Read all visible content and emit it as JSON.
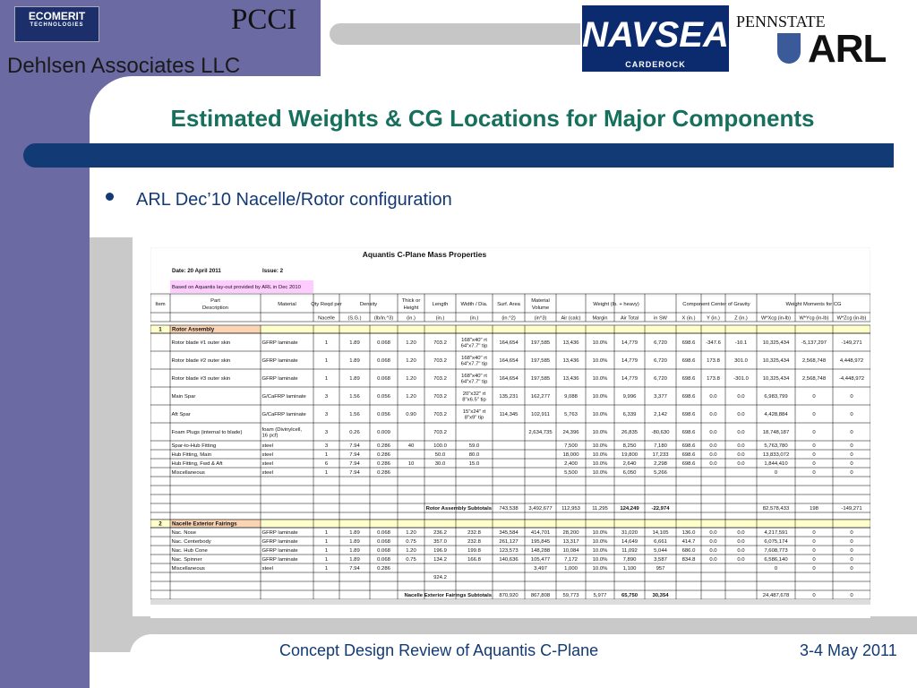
{
  "logos": {
    "ecomerit": "ECOMERIT",
    "ecomerit_sub": "TECHNOLOGIES",
    "pcci": "PCCI",
    "navsea": "NAVSEA",
    "navsea_sub": "CARDEROCK",
    "pennstate": "PENNSTATE",
    "arl": "ARL"
  },
  "company": "Dehlsen Associates LLC",
  "title": "Estimated Weights & CG Locations for Major Components",
  "bullet": "ARL Dec’10 Nacelle/Rotor configuration",
  "footer": {
    "left": "Concept Design Review of Aquantis C-Plane",
    "right": "3-4 May 2011"
  },
  "colors": {
    "purple": "#6b6aa3",
    "navy": "#123a74",
    "title_green": "#16705d",
    "section_yellow": "#ffffcc",
    "note_pink": "#ffccff",
    "header_section_bg": "#fbd4b4"
  },
  "table": {
    "title": "Aquantis C-Plane Mass Properties",
    "date": "Date:  20 April 2011",
    "issue": "Issue:  2",
    "note": "Based on Aquantis lay-out provided by ARL in Dec 2010",
    "headers1": [
      "Item",
      "Part Description",
      "Material",
      "Qty Reqd per",
      "Density",
      "Thick or Height",
      "Length",
      "Width / Dia.",
      "Surf. Area",
      "Material Volume",
      "Weight (lb. + heavy)",
      "Component Center of Gravity",
      "Weight Moments for CG"
    ],
    "headers2": [
      "Nacelle",
      "(S.G.)",
      "(lb/in.^3)",
      "(in.)",
      "(in.)",
      "(in.)",
      "(in.^2)",
      "(in^3)",
      "Air (calc)",
      "Margin",
      "Air Total",
      "in SW",
      "X (in.)",
      "Y (in.)",
      "Z (in.)",
      "W*Xcg (in-lb)",
      "W*Ycg (in-lb)",
      "W*Zcg (in-lb)"
    ],
    "sections": [
      {
        "num": "1",
        "name": "Rotor Assembly",
        "rows": [
          [
            "Rotor blade #1 outer skin",
            "GFRP laminate",
            "1",
            "1.89",
            "0.068",
            "1.20",
            "703.2",
            "168\"x40\" rt|64\"x7.7\" tip",
            "164,654",
            "197,585",
            "13,436",
            "10.0%",
            "14,779",
            "6,720",
            "698.6",
            "-347.6",
            "-10.1",
            "10,325,434",
            "-5,137,297",
            "-149,271"
          ],
          [
            "Rotor blade #2 outer skin",
            "GFRP laminate",
            "1",
            "1.89",
            "0.068",
            "1.20",
            "703.2",
            "168\"x40\" rt|64\"x7.7\" tip",
            "164,654",
            "197,585",
            "13,436",
            "10.0%",
            "14,779",
            "6,720",
            "698.6",
            "173.8",
            "301.0",
            "10,325,434",
            "2,568,748",
            "4,448,972"
          ],
          [
            "Rotor blade #3 outer skin",
            "GFRP laminate",
            "1",
            "1.89",
            "0.068",
            "1.20",
            "703.2",
            "168\"x40\" rt|64\"x7.7\" tip",
            "164,654",
            "197,585",
            "13,436",
            "10.0%",
            "14,779",
            "6,720",
            "698.6",
            "173.8",
            "-301.0",
            "10,325,434",
            "2,568,748",
            "-4,448,972"
          ],
          [
            "Main Spar",
            "G/CaFRP laminate",
            "3",
            "1.56",
            "0.056",
            "1.20",
            "703.2",
            "20\"x32\" rt|8\"x6.5\" tip",
            "135,231",
            "162,277",
            "9,088",
            "10.0%",
            "9,996",
            "3,377",
            "698.6",
            "0.0",
            "0.0",
            "6,983,799",
            "0",
            "0"
          ],
          [
            "Aft Spar",
            "G/CaFRP laminate",
            "3",
            "1.56",
            "0.056",
            "0.90",
            "703.2",
            "15\"x24\" rt|8\"x9\" tip",
            "114,345",
            "102,911",
            "5,763",
            "10.0%",
            "6,339",
            "2,142",
            "698.6",
            "0.0",
            "0.0",
            "4,428,884",
            "0",
            "0"
          ],
          [
            "Foam Plugs (internal to blade)",
            "foam (Divinylcell,|16 pcf)",
            "3",
            "0.26",
            "0.009",
            "",
            "703.2",
            "",
            "",
            "2,634,735",
            "24,396",
            "10.0%",
            "26,835",
            "-80,630",
            "698.6",
            "0.0",
            "0.0",
            "18,748,187",
            "0",
            "0"
          ],
          [
            "Spar-to-Hub Fitting",
            "steel",
            "3",
            "7.94",
            "0.286",
            "40",
            "100.0",
            "59.0",
            "",
            "",
            "7,500",
            "10.0%",
            "8,250",
            "7,180",
            "698.6",
            "0.0",
            "0.0",
            "5,763,780",
            "0",
            "0"
          ],
          [
            "Hub Fitting, Main",
            "steel",
            "1",
            "7.94",
            "0.286",
            "",
            "50.0",
            "80.0",
            "",
            "",
            "18,000",
            "10.0%",
            "19,800",
            "17,233",
            "698.6",
            "0.0",
            "0.0",
            "13,833,072",
            "0",
            "0"
          ],
          [
            "Hub Fitting, Fwd & Aft",
            "steel",
            "6",
            "7.94",
            "0.286",
            "10",
            "30.0",
            "15.0",
            "",
            "",
            "2,400",
            "10.0%",
            "2,640",
            "2,298",
            "698.6",
            "0.0",
            "0.0",
            "1,844,410",
            "0",
            "0"
          ],
          [
            "Miscellaneous",
            "steel",
            "1",
            "7.94",
            "0.286",
            "",
            "",
            "",
            "",
            "",
            "5,500",
            "10.0%",
            "6,050",
            "5,266",
            "",
            "",
            "",
            "0",
            "0",
            "0"
          ]
        ],
        "subtotal": {
          "label": "Rotor Assembly Subtotals",
          "values": [
            "743,538",
            "3,492,677",
            "112,953",
            "11,295",
            "124,249",
            "-22,974",
            "",
            "",
            "",
            "82,578,433",
            "198",
            "-149,271"
          ]
        }
      },
      {
        "num": "2",
        "name": "Nacelle Exterior Fairings",
        "rows": [
          [
            "Nac. Nose",
            "GFRP laminate",
            "1",
            "1.89",
            "0.068",
            "1.20",
            "236.2",
            "232.8",
            "345,584",
            "414,701",
            "28,200",
            "10.0%",
            "31,020",
            "14,105",
            "136.0",
            "0.0",
            "0.0",
            "4,217,591",
            "0",
            "0"
          ],
          [
            "Nac. Centerbody",
            "GFRP laminate",
            "1",
            "1.89",
            "0.068",
            "0.75",
            "357.0",
            "232.8",
            "261,127",
            "195,845",
            "13,317",
            "10.0%",
            "14,649",
            "6,661",
            "414.7",
            "0.0",
            "0.0",
            "6,075,174",
            "0",
            "0"
          ],
          [
            "Nac. Hub Cone",
            "GFRP laminate",
            "1",
            "1.89",
            "0.068",
            "1.20",
            "196.9",
            "199.8",
            "123,573",
            "148,288",
            "10,084",
            "10.0%",
            "11,092",
            "5,044",
            "686.0",
            "0.0",
            "0.0",
            "7,608,773",
            "0",
            "0"
          ],
          [
            "Nac. Spinner",
            "GFRP laminate",
            "1",
            "1.89",
            "0.068",
            "0.75",
            "134.2",
            "166.8",
            "140,636",
            "105,477",
            "7,172",
            "10.0%",
            "7,890",
            "3,587",
            "834.8",
            "0.0",
            "0.0",
            "6,586,140",
            "0",
            "0"
          ],
          [
            "Miscellaneous",
            "steel",
            "1",
            "7.94",
            "0.286",
            "",
            "",
            "",
            "",
            "3,497",
            "1,000",
            "10.0%",
            "1,100",
            "957",
            "",
            "",
            "",
            "0",
            "0",
            "0"
          ],
          [
            "",
            "",
            "",
            "",
            "",
            "",
            "924.2",
            "",
            "",
            "",
            "",
            "",
            "",
            "",
            "",
            "",
            "",
            "",
            "",
            ""
          ]
        ],
        "subtotal": {
          "label": "Nacelle Exterior Fairings Subtotals",
          "values": [
            "870,920",
            "867,808",
            "59,773",
            "5,977",
            "65,750",
            "30,354",
            "",
            "",
            "",
            "24,487,678",
            "0",
            "0"
          ]
        }
      }
    ]
  }
}
